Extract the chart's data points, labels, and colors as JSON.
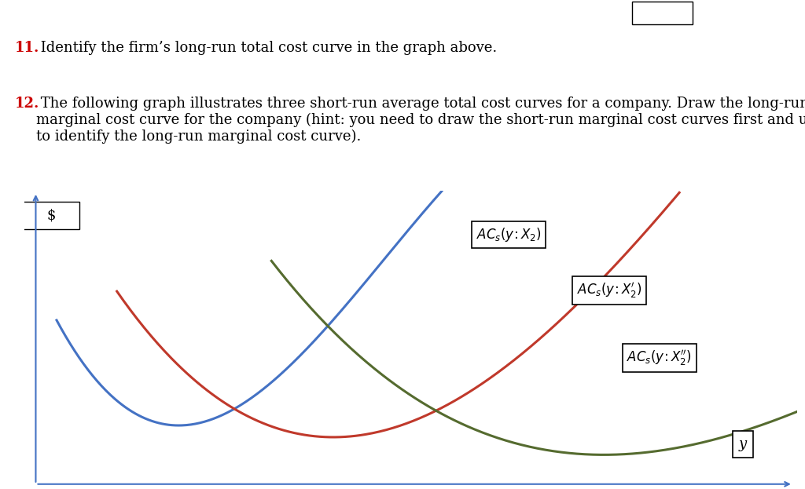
{
  "text_line1_number": "11.",
  "text_line1_text": " Identify the firm’s long-run total cost curve in the graph above.",
  "text_line2_number": "12.",
  "text_line2_text": " The following graph illustrates three short-run average total cost curves for a company. Draw the long-run\nmarginal cost curve for the company (hint: you need to draw the short-run marginal cost curves first and use those\nto identify the long-run marginal cost curve).",
  "number_color": "#cc0000",
  "text_color": "#000000",
  "bg_color": "#ffffff",
  "curve1_color": "#4472c4",
  "curve2_color": "#c0392b",
  "curve3_color": "#556b2f",
  "axis_color": "#4472c4",
  "dollar_label": "$",
  "y_label": "y",
  "font_size_text": 13,
  "font_size_label": 12
}
